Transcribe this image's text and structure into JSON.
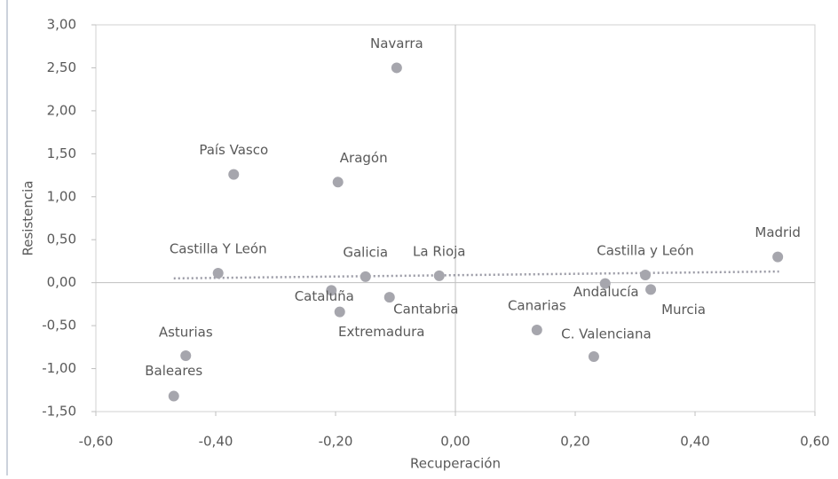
{
  "chart_data": {
    "type": "scatter",
    "xlabel": "Recuperación",
    "ylabel": "Resistencia",
    "color": "#a6a6ad",
    "series": [
      {
        "name": null,
        "color": "#a6a6ad",
        "labels": [
          "Navarra",
          "País Vasco",
          "Aragón",
          "Castilla Y León",
          "Galicia",
          "La Rioja",
          "Cataluña",
          "Extremadura",
          "Cantabria",
          "Asturias",
          "Baleares",
          "Canarias",
          "C. Valenciana",
          "Andalucía",
          "Castilla y León",
          "Murcia",
          "Madrid"
        ],
        "x": [
          -0.098,
          -0.37,
          -0.196,
          -0.396,
          -0.15,
          -0.027,
          -0.207,
          -0.193,
          -0.11,
          -0.45,
          -0.47,
          0.136,
          0.231,
          0.25,
          0.317,
          0.326,
          0.538
        ],
        "values": [
          2.5,
          1.26,
          1.17,
          0.11,
          0.07,
          0.08,
          -0.09,
          -0.34,
          -0.17,
          -0.85,
          -1.32,
          -0.55,
          -0.86,
          -0.01,
          0.09,
          -0.08,
          0.3
        ]
      }
    ],
    "trendline": {
      "x": [
        -0.47,
        0.54
      ],
      "values": [
        0.05,
        0.13
      ]
    },
    "xlim": [
      -0.6,
      0.6
    ],
    "xticks": [
      {
        "value": -0.6,
        "label": "-0,60"
      },
      {
        "value": -0.4,
        "label": "-0,40"
      },
      {
        "value": -0.2,
        "label": "-0,20"
      },
      {
        "value": 0,
        "label": "0,00"
      },
      {
        "value": 0.2,
        "label": "0,20"
      },
      {
        "value": 0.4,
        "label": "0,40"
      },
      {
        "value": 0.6,
        "label": "0,60"
      }
    ],
    "ylim": [
      -1.5,
      3.0
    ],
    "yticks": [
      {
        "value": -1.5,
        "label": "-1,50"
      },
      {
        "value": -1.0,
        "label": "-1,00"
      },
      {
        "value": -0.5,
        "label": "-0,50"
      },
      {
        "value": 0,
        "label": "0,00"
      },
      {
        "value": 0.5,
        "label": "0,50"
      },
      {
        "value": 1.0,
        "label": "1,00"
      },
      {
        "value": 1.5,
        "label": "1,50"
      },
      {
        "value": 2.0,
        "label": "2,00"
      },
      {
        "value": 2.5,
        "label": "2,50"
      },
      {
        "value": 3.0,
        "label": "3,00"
      }
    ]
  }
}
